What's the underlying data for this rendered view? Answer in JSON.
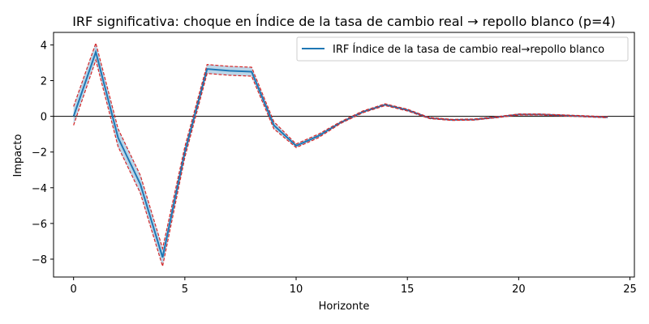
{
  "chart_data": {
    "type": "line",
    "title": "IRF significativa: choque en Índice de la tasa de cambio real → repollo blanco (p=4)",
    "xlabel": "Horizonte",
    "ylabel": "Impacto",
    "xlim": [
      -0.9,
      25.2
    ],
    "ylim": [
      -9.0,
      4.7
    ],
    "xticks": [
      0,
      5,
      10,
      15,
      20,
      25
    ],
    "yticks": [
      -8,
      -6,
      -4,
      -2,
      0,
      2,
      4
    ],
    "legend_position": "upper-right",
    "zero_line": true,
    "x": [
      0,
      1,
      2,
      3,
      4,
      5,
      6,
      7,
      8,
      9,
      10,
      11,
      12,
      13,
      14,
      15,
      16,
      17,
      18,
      19,
      20,
      21,
      22,
      23,
      24
    ],
    "series": [
      {
        "name": "IRF Índice de la tasa de cambio real→repollo blanco",
        "role": "irf",
        "color": "#1f77b4",
        "values": [
          0.0,
          3.6,
          -1.2,
          -3.8,
          -7.9,
          -2.0,
          2.65,
          2.55,
          2.5,
          -0.5,
          -1.65,
          -1.1,
          -0.35,
          0.25,
          0.65,
          0.35,
          -0.1,
          -0.2,
          -0.18,
          -0.05,
          0.1,
          0.1,
          0.05,
          0.0,
          -0.05
        ]
      },
      {
        "role": "upper",
        "color": "#d62728",
        "values": [
          0.55,
          4.1,
          -0.7,
          -3.3,
          -7.4,
          -1.7,
          2.9,
          2.8,
          2.75,
          -0.3,
          -1.55,
          -1.0,
          -0.3,
          0.3,
          0.7,
          0.4,
          -0.07,
          -0.17,
          -0.15,
          -0.02,
          0.13,
          0.13,
          0.08,
          0.03,
          -0.02
        ]
      },
      {
        "role": "lower",
        "color": "#d62728",
        "values": [
          -0.5,
          3.15,
          -1.7,
          -4.3,
          -8.4,
          -2.3,
          2.4,
          2.3,
          2.25,
          -0.7,
          -1.75,
          -1.2,
          -0.4,
          0.2,
          0.6,
          0.3,
          -0.13,
          -0.23,
          -0.21,
          -0.08,
          0.07,
          0.07,
          0.02,
          -0.03,
          -0.08
        ]
      }
    ]
  }
}
